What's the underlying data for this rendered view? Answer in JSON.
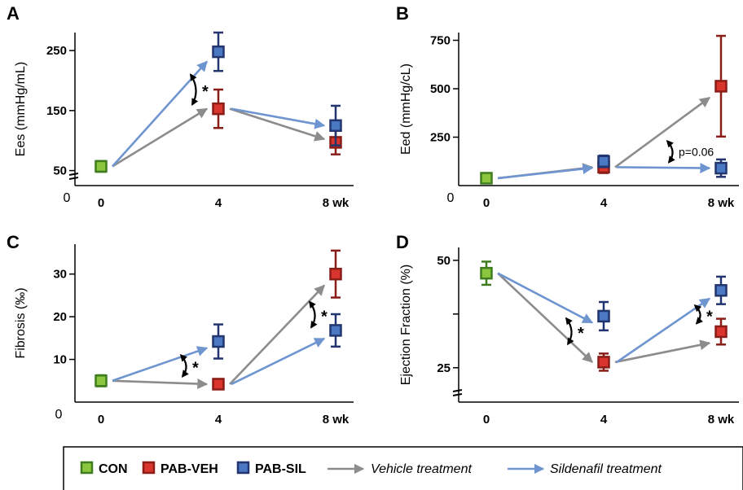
{
  "colors": {
    "CON": "#8cc63f",
    "PAB-VEH": "#d9352c",
    "PAB-SIL": "#4a78c2",
    "CON_edge": "#3f7d1f",
    "PAB-VEH_edge": "#8a1d17",
    "PAB-SIL_edge": "#22356e",
    "vehicle_arrow": "#8c8c8c",
    "sildenafil_arrow": "#6f95d1"
  },
  "legend": {
    "con": "CON",
    "veh": "PAB-VEH",
    "sil": "PAB-SIL",
    "vehicle": "Vehicle treatment",
    "sildenafil": "Sildenafil treatment"
  },
  "chart_data": [
    {
      "panel": "A",
      "type": "scatter",
      "ylabel": "Ees (mmHg/mL)",
      "ylim": [
        25,
        280
      ],
      "yticks": [
        50,
        150,
        250
      ],
      "origin_label": "0",
      "x": [
        "0",
        "4",
        "8 wk"
      ],
      "axis_break": true,
      "series": [
        {
          "name": "CON",
          "points": [
            {
              "x": 0,
              "y": 57,
              "err": 9
            }
          ]
        },
        {
          "name": "PAB-VEH",
          "points": [
            {
              "x": 4,
              "y": 153,
              "err": 32
            },
            {
              "x": 8,
              "y": 97,
              "err": 20
            }
          ]
        },
        {
          "name": "PAB-SIL",
          "points": [
            {
              "x": 4,
              "y": 248,
              "err": 32
            },
            {
              "x": 8,
              "y": 125,
              "err": 33
            }
          ]
        }
      ],
      "annotations": [
        {
          "text": "*",
          "between": "4"
        }
      ]
    },
    {
      "panel": "B",
      "type": "scatter",
      "ylabel": "Eed (mmHg/cL)",
      "ylim": [
        0,
        790
      ],
      "yticks": [
        250,
        500,
        750
      ],
      "origin_label": "0",
      "x": [
        "0",
        "4",
        "8 wk"
      ],
      "axis_break": false,
      "series": [
        {
          "name": "CON",
          "points": [
            {
              "x": 0,
              "y": 38,
              "err": 15
            }
          ]
        },
        {
          "name": "PAB-VEH",
          "points": [
            {
              "x": 4,
              "y": 95,
              "err": 30
            },
            {
              "x": 8,
              "y": 513,
              "err": 260
            }
          ]
        },
        {
          "name": "PAB-SIL",
          "points": [
            {
              "x": 4,
              "y": 125,
              "err": 30
            },
            {
              "x": 8,
              "y": 90,
              "err": 45
            }
          ]
        }
      ],
      "annotations": [
        {
          "text": "p=0.06",
          "between": "8 wk"
        }
      ]
    },
    {
      "panel": "C",
      "type": "scatter",
      "ylabel": "Fibrosis (‰)",
      "ylim": [
        0,
        37
      ],
      "yticks": [
        10,
        20,
        30
      ],
      "origin_label": "0",
      "x": [
        "0",
        "4",
        "8 wk"
      ],
      "axis_break": false,
      "series": [
        {
          "name": "CON",
          "points": [
            {
              "x": 0,
              "y": 5,
              "err": 1.3
            }
          ]
        },
        {
          "name": "PAB-VEH",
          "points": [
            {
              "x": 4,
              "y": 4.2,
              "err": 1.2
            },
            {
              "x": 8,
              "y": 30,
              "err": 5.5
            }
          ]
        },
        {
          "name": "PAB-SIL",
          "points": [
            {
              "x": 4,
              "y": 14.2,
              "err": 4
            },
            {
              "x": 8,
              "y": 16.8,
              "err": 3.8
            }
          ]
        }
      ],
      "annotations": [
        {
          "text": "*",
          "between": "4"
        },
        {
          "text": "*",
          "between": "8 wk"
        }
      ]
    },
    {
      "panel": "D",
      "type": "scatter",
      "ylabel": "Ejection Fraction (%)",
      "ylim": [
        17,
        53
      ],
      "yticks": [
        25,
        50
      ],
      "minor_ytick": 37.5,
      "origin_label": "",
      "x": [
        "0",
        "4",
        "8 wk"
      ],
      "axis_break": true,
      "series": [
        {
          "name": "CON",
          "points": [
            {
              "x": 0,
              "y": 47,
              "err": 2.7
            }
          ]
        },
        {
          "name": "PAB-VEH",
          "points": [
            {
              "x": 4,
              "y": 26.3,
              "err": 2
            },
            {
              "x": 8,
              "y": 33.4,
              "err": 3
            }
          ]
        },
        {
          "name": "PAB-SIL",
          "points": [
            {
              "x": 4,
              "y": 37,
              "err": 3.3
            },
            {
              "x": 8,
              "y": 43,
              "err": 3.2
            }
          ]
        }
      ],
      "annotations": [
        {
          "text": "*",
          "between": "4"
        },
        {
          "text": "*",
          "between": "8 wk"
        }
      ]
    }
  ]
}
